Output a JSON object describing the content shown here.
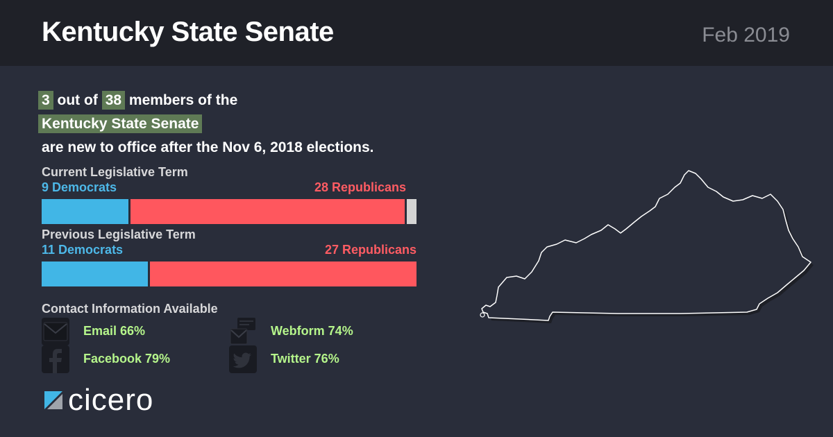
{
  "header": {
    "title": "Kentucky State Senate",
    "date": "Feb 2019"
  },
  "summary": {
    "new_members": "3",
    "out_of_text": "out of",
    "total_members": "38",
    "members_of_text": "members of the",
    "chamber": "Kentucky State Senate",
    "trailing_text": "are new to office after the Nov 6, 2018 elections."
  },
  "current_term": {
    "label": "Current Legislative Term",
    "democrats_label": "9 Democrats",
    "republicans_label": "28 Republicans",
    "democrats": 9,
    "republicans": 28,
    "other": 1
  },
  "previous_term": {
    "label": "Previous Legislative Term",
    "democrats_label": "11 Democrats",
    "republicans_label": "27 Republicans",
    "democrats": 11,
    "republicans": 27,
    "other": 0
  },
  "colors": {
    "democrat": "#41b6e6",
    "republican": "#ff575e",
    "other": "#d4d4d4",
    "highlight": "#5f7a55",
    "contact_text": "#b5f58b"
  },
  "contact": {
    "title": "Contact Information Available",
    "items": [
      {
        "icon": "email-icon",
        "label": "Email 66%"
      },
      {
        "icon": "webform-icon",
        "label": "Webform 74%"
      },
      {
        "icon": "facebook-icon",
        "label": "Facebook 79%"
      },
      {
        "icon": "twitter-icon",
        "label": "Twitter 76%"
      }
    ]
  },
  "logo": {
    "text": "cicero"
  }
}
